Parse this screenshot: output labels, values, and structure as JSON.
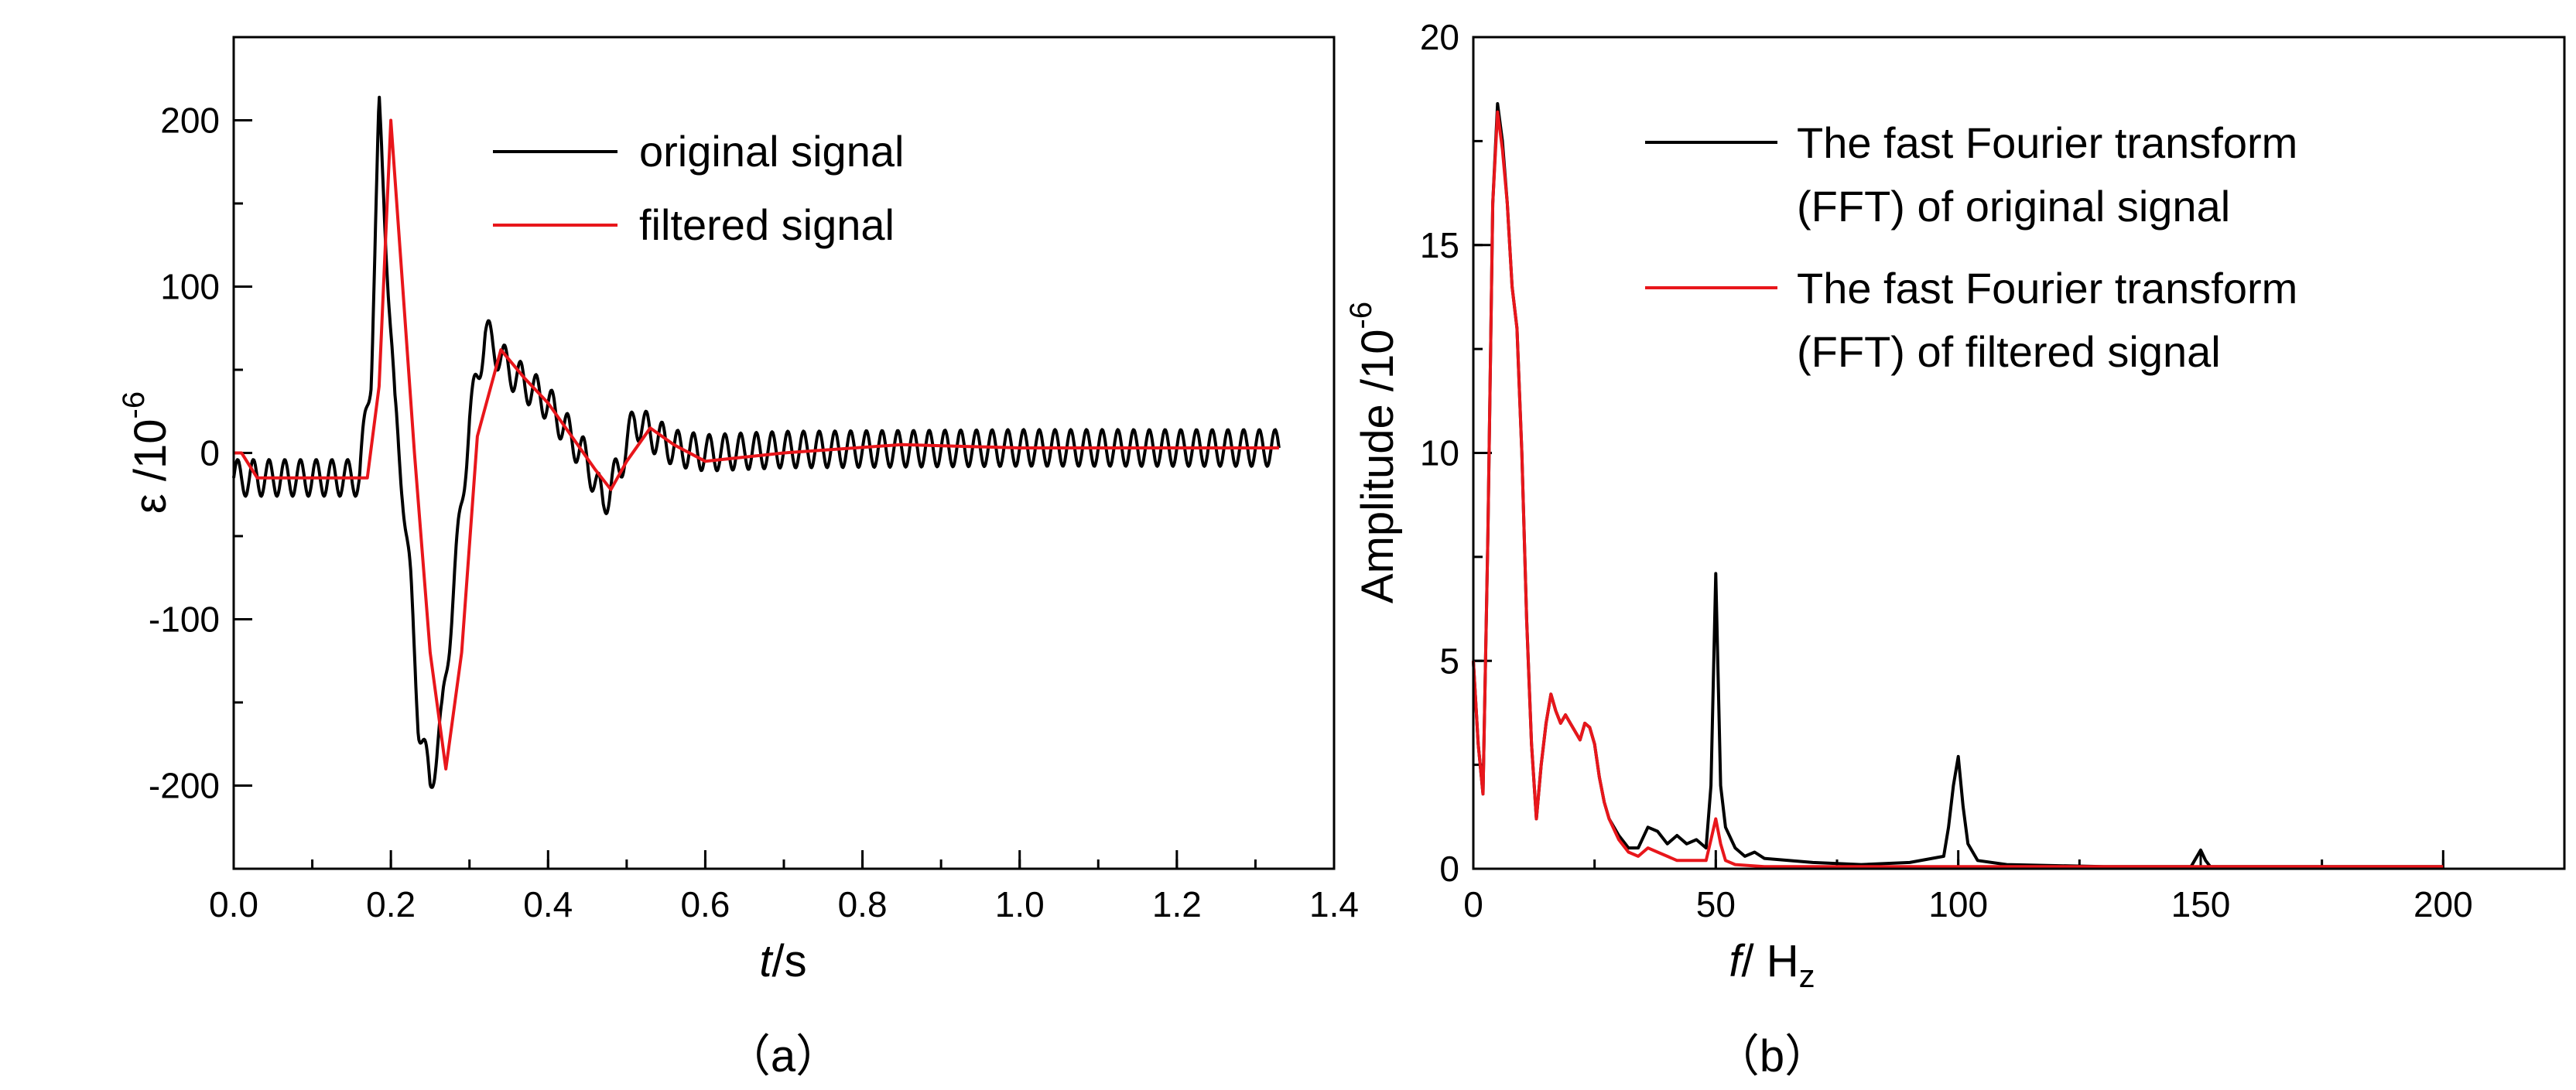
{
  "chart_data": [
    {
      "type": "line",
      "panel_caption": "（a）",
      "ylabel": "ε /10",
      "ylabel_exponent": "-6",
      "xlabel_var": "t",
      "xlabel_unit": "/s",
      "xlim": [
        0.0,
        1.4
      ],
      "ylim": [
        -250,
        250
      ],
      "x_ticks": [
        0.0,
        0.2,
        0.4,
        0.6,
        0.8,
        1.0,
        1.2,
        1.4
      ],
      "x_tick_labels": [
        "0.0",
        "0.2",
        "0.4",
        "0.6",
        "0.8",
        "1.0",
        "1.2",
        "1.4"
      ],
      "y_ticks": [
        -200,
        -100,
        0,
        100,
        200
      ],
      "y_tick_labels": [
        "-200",
        "-100",
        "0",
        "100",
        "200"
      ],
      "legend": [
        "original signal",
        "filtered signal"
      ],
      "series": [
        {
          "name": "original signal",
          "color": "#000000",
          "x": [
            0.0,
            0.16,
            0.175,
            0.185,
            0.195,
            0.205,
            0.215,
            0.225,
            0.235,
            0.25,
            0.265,
            0.28,
            0.3,
            0.32,
            0.35,
            0.4,
            0.45,
            0.47,
            0.49,
            0.51,
            0.53,
            0.56,
            0.6,
            0.7,
            1.0,
            1.33
          ],
          "values": [
            -15,
            -15,
            50,
            205,
            120,
            25,
            -20,
            -80,
            -160,
            -200,
            -160,
            -80,
            20,
            72,
            50,
            30,
            -5,
            -30,
            -10,
            20,
            12,
            3,
            0,
            2,
            3,
            3
          ],
          "noise_amplitude": 11,
          "noise_period": 0.02
        },
        {
          "name": "filtered signal",
          "color": "#e8161b",
          "x": [
            0.0,
            0.01,
            0.03,
            0.17,
            0.185,
            0.2,
            0.215,
            0.23,
            0.25,
            0.27,
            0.29,
            0.31,
            0.34,
            0.37,
            0.4,
            0.43,
            0.46,
            0.48,
            0.5,
            0.53,
            0.56,
            0.6,
            0.7,
            0.85,
            1.0,
            1.2,
            1.33
          ],
          "values": [
            0,
            0,
            -15,
            -15,
            40,
            200,
            100,
            0,
            -120,
            -190,
            -120,
            10,
            62,
            45,
            30,
            10,
            -10,
            -22,
            -5,
            15,
            5,
            -5,
            0,
            5,
            3,
            3,
            3
          ]
        }
      ]
    },
    {
      "type": "line",
      "panel_caption": "（b）",
      "ylabel": "Amplitude /10",
      "ylabel_exponent": "-6",
      "xlabel_var": "f",
      "xlabel_unit": "/ H",
      "xlabel_unit_sub": "z",
      "xlim": [
        0,
        225
      ],
      "ylim": [
        0,
        20
      ],
      "x_ticks": [
        0,
        50,
        100,
        150,
        200
      ],
      "x_tick_labels": [
        "0",
        "50",
        "100",
        "150",
        "200"
      ],
      "y_ticks": [
        0,
        5,
        10,
        15,
        20
      ],
      "y_tick_labels": [
        "0",
        "5",
        "10",
        "15",
        "20"
      ],
      "legend": [
        "The fast Fourier transform",
        "(FFT) of original signal",
        "The fast Fourier transform",
        "(FFT) of filtered signal"
      ],
      "series": [
        {
          "name": "The fast Fourier transform (FFT) of original signal",
          "color": "#000000",
          "x": [
            0,
            1,
            2,
            3,
            4,
            5,
            6,
            7,
            8,
            9,
            10,
            11,
            12,
            13,
            14,
            15,
            16,
            17,
            18,
            19,
            20,
            21,
            22,
            23,
            24,
            25,
            26,
            27,
            28,
            30,
            32,
            34,
            36,
            38,
            40,
            42,
            44,
            46,
            48,
            49,
            50,
            51,
            52,
            54,
            56,
            58,
            60,
            65,
            70,
            80,
            90,
            97,
            98,
            99,
            100,
            101,
            102,
            104,
            110,
            130,
            148,
            149,
            150,
            151,
            152,
            170,
            200
          ],
          "values": [
            5,
            3,
            1.8,
            8,
            16,
            18.4,
            17.5,
            16,
            14,
            13,
            10,
            6,
            3,
            1.2,
            2.5,
            3.5,
            4.2,
            3.8,
            3.5,
            3.7,
            3.5,
            3.3,
            3.1,
            3.5,
            3.4,
            3.0,
            2.2,
            1.6,
            1.2,
            0.8,
            0.5,
            0.5,
            1.0,
            0.9,
            0.6,
            0.8,
            0.6,
            0.7,
            0.5,
            2.0,
            7.1,
            2.0,
            1.0,
            0.5,
            0.3,
            0.4,
            0.25,
            0.2,
            0.15,
            0.1,
            0.15,
            0.3,
            1.0,
            2.0,
            2.7,
            1.5,
            0.6,
            0.2,
            0.1,
            0.05,
            0.05,
            0.25,
            0.45,
            0.2,
            0.05,
            0.05,
            0.05
          ]
        },
        {
          "name": "The fast Fourier transform (FFT) of filtered signal",
          "color": "#e8161b",
          "x": [
            0,
            1,
            2,
            3,
            4,
            5,
            6,
            7,
            8,
            9,
            10,
            11,
            12,
            13,
            14,
            15,
            16,
            17,
            18,
            19,
            20,
            21,
            22,
            23,
            24,
            25,
            26,
            27,
            28,
            30,
            32,
            34,
            36,
            38,
            40,
            42,
            44,
            46,
            48,
            49,
            50,
            51,
            52,
            54,
            60,
            80,
            100,
            150,
            200
          ],
          "values": [
            5,
            3,
            1.8,
            8,
            16,
            18.2,
            17.3,
            16,
            14,
            13,
            10,
            6,
            3,
            1.2,
            2.5,
            3.5,
            4.2,
            3.8,
            3.5,
            3.7,
            3.5,
            3.3,
            3.1,
            3.5,
            3.4,
            3.0,
            2.2,
            1.6,
            1.2,
            0.7,
            0.4,
            0.3,
            0.5,
            0.4,
            0.3,
            0.2,
            0.2,
            0.2,
            0.2,
            0.7,
            1.2,
            0.6,
            0.2,
            0.1,
            0.05,
            0.05,
            0.05,
            0.05,
            0.05
          ]
        }
      ]
    }
  ]
}
